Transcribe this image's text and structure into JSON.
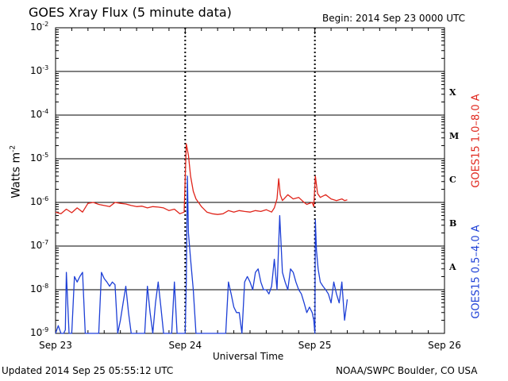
{
  "title": "GOES Xray Flux (5 minute data)",
  "begin": "Begin:  2014 Sep 23 0000 UTC",
  "updated": "Updated 2014 Sep 25 05:55:12 UTC",
  "credit": "NOAA/SWPC Boulder, CO USA",
  "colors": {
    "red_series": "#e0251b",
    "blue_series": "#1d3fd6",
    "grid": "#000000",
    "background": "#ffffff"
  },
  "chart_data": {
    "type": "line",
    "title": "GOES Xray Flux (5 minute data)",
    "xlabel": "Universal Time",
    "ylabel": "Watts m",
    "ylabel_exp": "-2",
    "y_scale": "log",
    "ylim": [
      1e-09,
      0.01
    ],
    "xlim": [
      "Sep 23 00:00",
      "Sep 26 00:00"
    ],
    "x_units": "hours since 2014 Sep 23 00:00 UTC",
    "x_ticks": [
      {
        "x": 0,
        "label": "Sep 23"
      },
      {
        "x": 24,
        "label": "Sep 24"
      },
      {
        "x": 48,
        "label": "Sep 25"
      },
      {
        "x": 72,
        "label": "Sep 26"
      }
    ],
    "y_ticks": [
      {
        "exp": -2,
        "base": "10",
        "sup": "-2"
      },
      {
        "exp": -3,
        "base": "10",
        "sup": "-3"
      },
      {
        "exp": -4,
        "base": "10",
        "sup": "-4"
      },
      {
        "exp": -5,
        "base": "10",
        "sup": "-5"
      },
      {
        "exp": -6,
        "base": "10",
        "sup": "-6"
      },
      {
        "exp": -7,
        "base": "10",
        "sup": "-7"
      },
      {
        "exp": -8,
        "base": "10",
        "sup": "-8"
      },
      {
        "exp": -9,
        "base": "10",
        "sup": "-9"
      }
    ],
    "flare_classes": [
      {
        "label": "X",
        "exp": -3.5
      },
      {
        "label": "M",
        "exp": -4.5
      },
      {
        "label": "C",
        "exp": -5.5
      },
      {
        "label": "B",
        "exp": -6.5
      },
      {
        "label": "A",
        "exp": -7.5
      }
    ],
    "grid": true,
    "series": [
      {
        "name": "GOES15 1.0–8.0 A",
        "color": "#e0251b",
        "x": [
          0,
          1,
          2,
          3,
          4,
          5,
          6,
          7,
          8,
          9,
          10,
          11,
          12,
          13,
          14,
          15,
          16,
          17,
          18,
          19,
          20,
          21,
          22,
          23,
          23.8,
          24.2,
          24.6,
          25,
          25.5,
          26,
          27,
          28,
          29,
          30,
          31,
          32,
          33,
          34,
          35,
          36,
          37,
          38,
          39,
          40,
          40.5,
          41,
          41.3,
          41.6,
          42,
          43,
          44,
          45,
          46,
          46.5,
          47,
          47.5,
          47.8,
          48.1,
          48.5,
          49,
          50,
          51,
          52,
          53,
          53.5,
          54
        ],
        "y": [
          6e-07,
          5.5e-07,
          7e-07,
          5.8e-07,
          7.5e-07,
          6e-07,
          9.5e-07,
          1e-06,
          9e-07,
          8.5e-07,
          8e-07,
          1e-06,
          9.5e-07,
          9.2e-07,
          8.5e-07,
          8e-07,
          8.2e-07,
          7.5e-07,
          8e-07,
          7.8e-07,
          7.5e-07,
          6.5e-07,
          7e-07,
          5.5e-07,
          6e-07,
          2.2e-05,
          1.2e-05,
          4e-06,
          1.8e-06,
          1.2e-06,
          8e-07,
          6e-07,
          5.5e-07,
          5.3e-07,
          5.5e-07,
          6.5e-07,
          6e-07,
          6.5e-07,
          6.2e-07,
          6e-07,
          6.5e-07,
          6.2e-07,
          6.8e-07,
          6e-07,
          7.5e-07,
          1.2e-06,
          3.5e-06,
          1.5e-06,
          1.1e-06,
          1.5e-06,
          1.2e-06,
          1.3e-06,
          1e-06,
          9e-07,
          9.5e-07,
          1e-06,
          8e-07,
          4e-06,
          1.6e-06,
          1.3e-06,
          1.5e-06,
          1.2e-06,
          1.1e-06,
          1.2e-06,
          1.1e-06,
          1.15e-06
        ]
      },
      {
        "name": "GOES15 0.5–4.0 A",
        "color": "#1d3fd6",
        "x": [
          0,
          0.5,
          1,
          1.5,
          1.8,
          2,
          2.5,
          3,
          3.5,
          4,
          4.5,
          5,
          5.5,
          6,
          6.5,
          7,
          7.5,
          8,
          8.5,
          9,
          9.5,
          10,
          10.5,
          11,
          11.5,
          12,
          12.5,
          13,
          13.5,
          14,
          14.5,
          15,
          15.5,
          16,
          16.5,
          17,
          17.5,
          18,
          18.5,
          19,
          19.5,
          20,
          20.5,
          21,
          21.5,
          22,
          22.5,
          23,
          23.5,
          24,
          24.2,
          24.4,
          24.6,
          25,
          25.5,
          26,
          26.5,
          27,
          27.5,
          28,
          28.5,
          29,
          29.5,
          30,
          30.5,
          31,
          31.5,
          32,
          32.5,
          33,
          33.5,
          34,
          34.5,
          35,
          35.5,
          36,
          36.5,
          37,
          37.5,
          38,
          38.5,
          39,
          39.5,
          40,
          40.5,
          41,
          41.5,
          42,
          42.5,
          43,
          43.5,
          44,
          44.5,
          45,
          45.5,
          46,
          46.5,
          47,
          47.5,
          47.8,
          48,
          48.1,
          48.3,
          48.6,
          49,
          49.5,
          50,
          50.5,
          51,
          51.5,
          52,
          52.5,
          53,
          53.5,
          54
        ],
        "y": [
          1e-09,
          1.5e-09,
          9e-10,
          1e-09,
          1.2e-09,
          2.5e-08,
          1e-09,
          1e-09,
          2e-08,
          1.5e-08,
          2e-08,
          2.5e-08,
          1e-09,
          1e-09,
          1e-09,
          1e-09,
          1e-09,
          1e-09,
          2.5e-08,
          1.8e-08,
          1.5e-08,
          1.2e-08,
          1.5e-08,
          1.3e-08,
          1e-09,
          2e-09,
          5e-09,
          1.2e-08,
          3e-09,
          1e-09,
          1e-09,
          1e-09,
          1e-09,
          1e-09,
          1e-09,
          1.2e-08,
          3e-09,
          1e-09,
          5e-09,
          1.5e-08,
          4e-09,
          1e-09,
          1e-09,
          1e-09,
          1e-09,
          1.5e-08,
          1e-09,
          1e-09,
          1e-09,
          1e-09,
          1.5e-08,
          4e-06,
          2e-07,
          5e-08,
          1e-08,
          1e-09,
          1e-09,
          1e-09,
          1e-09,
          1e-09,
          1e-09,
          1e-09,
          1e-09,
          1e-09,
          1e-09,
          1e-09,
          1e-09,
          1.5e-08,
          8e-09,
          4e-09,
          3e-09,
          3e-09,
          1e-09,
          1.5e-08,
          2e-08,
          1.5e-08,
          1e-08,
          2.5e-08,
          3e-08,
          1.5e-08,
          1e-08,
          1e-08,
          8e-09,
          1.2e-08,
          5e-08,
          1e-08,
          5e-07,
          2.5e-08,
          1.5e-08,
          1e-08,
          3e-08,
          2.5e-08,
          1.5e-08,
          1e-08,
          8e-09,
          5e-09,
          3e-09,
          4e-09,
          3e-09,
          2e-09,
          1e-09,
          4e-07,
          8e-08,
          3e-08,
          1.5e-08,
          1.2e-08,
          1e-08,
          8e-09,
          5e-09,
          1.5e-08,
          8e-09,
          5e-09,
          1.5e-08,
          2e-09,
          6e-09
        ]
      }
    ],
    "vertical_markers_hours": [
      24,
      48
    ]
  },
  "series_labels": {
    "red": "GOES15 1.0–8.0 A",
    "blue": "GOES15 0.5–4.0 A"
  }
}
